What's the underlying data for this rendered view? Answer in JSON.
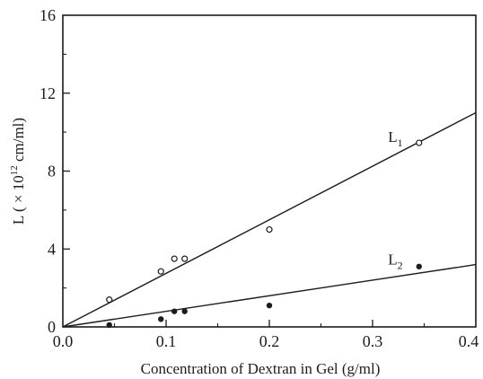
{
  "chart_data": {
    "type": "scatter",
    "title": "",
    "xlabel": "Concentration of Dextran in Gel (g/ml)",
    "ylabel_main": "L ( × 10",
    "ylabel_sup": "12",
    "ylabel_unit": " cm/ml)",
    "xlim": [
      0.0,
      0.4
    ],
    "ylim": [
      0,
      16
    ],
    "x_ticks": [
      {
        "value": 0.0,
        "label": "0.0"
      },
      {
        "value": 0.1,
        "label": "0.1"
      },
      {
        "value": 0.2,
        "label": "0.2"
      },
      {
        "value": 0.3,
        "label": "0.3"
      },
      {
        "value": 0.4,
        "label": "0.4"
      }
    ],
    "y_ticks": [
      {
        "value": 0,
        "label": "0"
      },
      {
        "value": 4,
        "label": "4"
      },
      {
        "value": 8,
        "label": "8"
      },
      {
        "value": 12,
        "label": "12"
      },
      {
        "value": 16,
        "label": "16"
      }
    ],
    "grid": false,
    "series": [
      {
        "name": "L",
        "subscript": "1",
        "marker": "open-circle",
        "points": [
          {
            "x": 0.045,
            "y": 1.4
          },
          {
            "x": 0.095,
            "y": 2.85
          },
          {
            "x": 0.108,
            "y": 3.5
          },
          {
            "x": 0.118,
            "y": 3.5
          },
          {
            "x": 0.2,
            "y": 5.0
          },
          {
            "x": 0.345,
            "y": 9.45
          }
        ],
        "fit_line": [
          {
            "x": 0.0,
            "y": 0.0
          },
          {
            "x": 0.4,
            "y": 11.0
          }
        ],
        "label_anchor": {
          "x": 0.315,
          "y": 9.5
        }
      },
      {
        "name": "L",
        "subscript": "2",
        "marker": "filled-circle",
        "points": [
          {
            "x": 0.045,
            "y": 0.1
          },
          {
            "x": 0.095,
            "y": 0.4
          },
          {
            "x": 0.108,
            "y": 0.8
          },
          {
            "x": 0.118,
            "y": 0.8
          },
          {
            "x": 0.2,
            "y": 1.1
          },
          {
            "x": 0.345,
            "y": 3.1
          }
        ],
        "fit_line": [
          {
            "x": 0.0,
            "y": 0.0
          },
          {
            "x": 0.4,
            "y": 3.2
          }
        ],
        "label_anchor": {
          "x": 0.315,
          "y": 3.2
        }
      }
    ]
  }
}
